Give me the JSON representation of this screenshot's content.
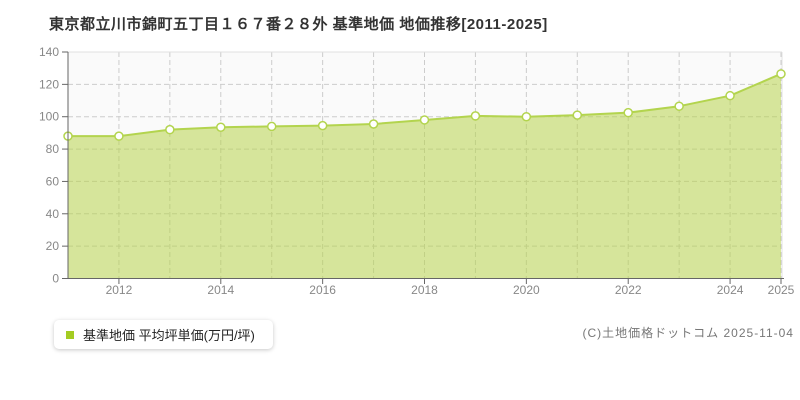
{
  "title": "東京都立川市錦町五丁目１６７番２８外 基準地価 地価推移[2011-2025]",
  "legend": {
    "label": "基準地価 平均坪単価(万円/坪)",
    "marker_color": "#a4cc22"
  },
  "footer": {
    "copyright": "(C)土地価格ドットコム 2025-11-04"
  },
  "chart_data": {
    "type": "area",
    "title": "東京都立川市錦町五丁目１６７番２８外 基準地価 地価推移[2011-2025]",
    "x": [
      2011,
      2012,
      2013,
      2014,
      2015,
      2016,
      2017,
      2018,
      2019,
      2020,
      2021,
      2022,
      2023,
      2024,
      2025
    ],
    "series": [
      {
        "name": "基準地価 平均坪単価(万円/坪)",
        "values": [
          88,
          88,
          92,
          93.5,
          94,
          94.5,
          95.5,
          98,
          100.5,
          100,
          101,
          102.5,
          106.5,
          113,
          126.5
        ]
      }
    ],
    "ylabel": "",
    "xlabel": "",
    "ylim": [
      0,
      140
    ],
    "yticks": [
      0,
      20,
      40,
      60,
      80,
      100,
      120,
      140
    ],
    "xtick_labels": [
      "2012",
      "2014",
      "2016",
      "2018",
      "2020",
      "2022",
      "2024",
      "2025"
    ],
    "grid": true,
    "legend_position": "bottom-left",
    "colors": {
      "line": "#b3d44e",
      "fill": "rgba(184,212,77,0.55)",
      "point_fill": "#ffffff",
      "grid": "#cccccc",
      "axis": "#666666",
      "tick_label": "#888888",
      "plot_bg": "#fafafa",
      "border": "#e0e0e0"
    }
  }
}
